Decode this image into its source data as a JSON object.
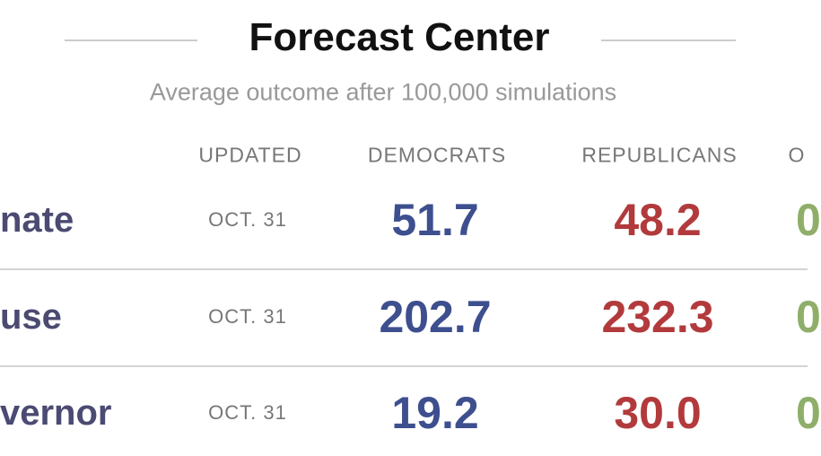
{
  "header": {
    "title": "Forecast Center",
    "subtitle": "Average outcome after 100,000 simulations"
  },
  "table": {
    "columns": [
      "UPDATED",
      "DEMOCRATS",
      "REPUBLICANS",
      "O"
    ],
    "rows": [
      {
        "label": "nate",
        "updated": "OCT. 31",
        "democrats": "51.7",
        "republicans": "48.2",
        "other": "0"
      },
      {
        "label": "use",
        "updated": "OCT. 31",
        "democrats": "202.7",
        "republicans": "232.3",
        "other": "0"
      },
      {
        "label": "vernor",
        "updated": "OCT. 31",
        "democrats": "19.2",
        "republicans": "30.0",
        "other": "0"
      }
    ]
  }
}
